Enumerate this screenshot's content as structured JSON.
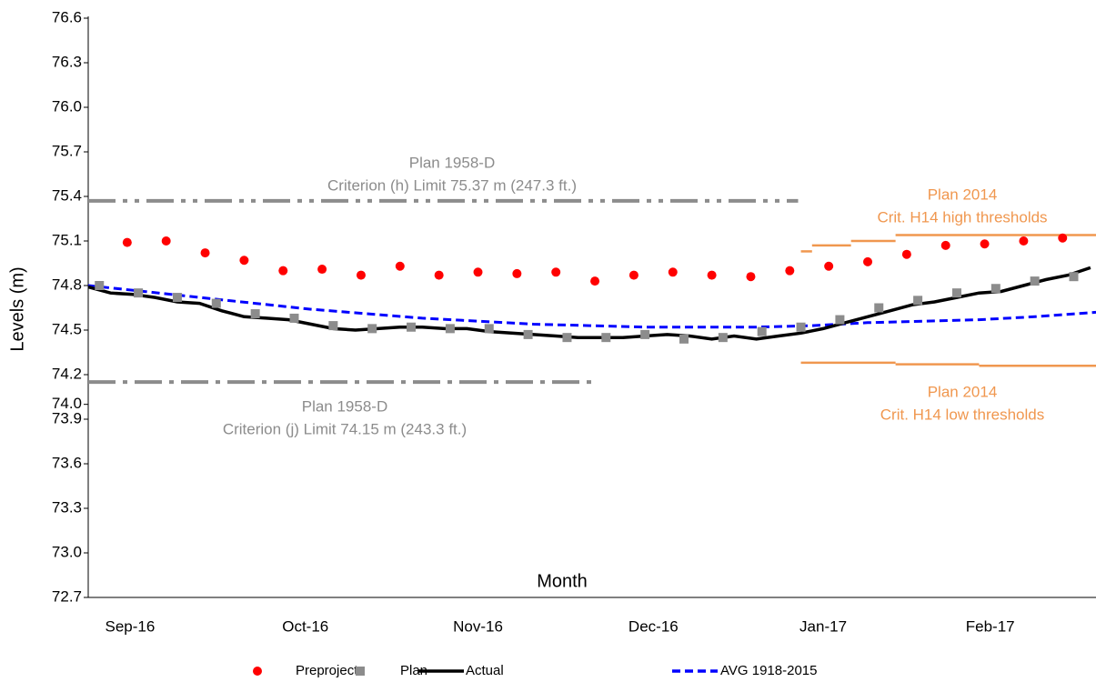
{
  "chart_data": {
    "type": "line",
    "y_label": "Levels (m)",
    "x_label": "Month",
    "xlim": [
      0,
      181
    ],
    "xticks": [
      {
        "value": 7.5,
        "label": "Sep-16"
      },
      {
        "value": 39,
        "label": "Oct-16"
      },
      {
        "value": 70,
        "label": "Nov-16"
      },
      {
        "value": 101.5,
        "label": "Dec-16"
      },
      {
        "value": 132,
        "label": "Jan-17"
      },
      {
        "value": 162,
        "label": "Feb-17"
      }
    ],
    "ylim": [
      72.7,
      76.6
    ],
    "yticks": [
      72.7,
      {
        "value": 73.0,
        "label": "73.0"
      },
      73.3,
      73.6,
      73.9,
      {
        "value": 74.0,
        "label": "74.0"
      },
      74.2,
      74.5,
      74.8,
      75.1,
      75.4,
      75.7,
      {
        "value": 76.0,
        "label": "76.0"
      },
      76.3,
      76.6
    ],
    "grid": false,
    "series": [
      {
        "name": "Preproject",
        "color": "#ff0000",
        "marker": "circle",
        "x": [
          7,
          14,
          21,
          28,
          35,
          42,
          49,
          56,
          63,
          70,
          77,
          84,
          91,
          98,
          105,
          112,
          119,
          126,
          133,
          140,
          147,
          154,
          161,
          168,
          175
        ],
        "values": [
          75.09,
          75.1,
          75.02,
          74.97,
          74.9,
          74.91,
          74.87,
          74.93,
          74.87,
          74.89,
          74.88,
          74.89,
          74.83,
          74.87,
          74.89,
          74.87,
          74.86,
          74.9,
          74.93,
          74.96,
          75.01,
          75.07,
          75.08,
          75.1,
          75.12
        ]
      },
      {
        "name": "Plan",
        "color": "#8c8c8c",
        "marker": "square",
        "x": [
          2,
          9,
          16,
          23,
          30,
          37,
          44,
          51,
          58,
          65,
          72,
          79,
          86,
          93,
          100,
          107,
          114,
          121,
          128,
          135,
          142,
          149,
          156,
          163,
          170,
          177
        ],
        "values": [
          74.8,
          74.75,
          74.72,
          74.68,
          74.61,
          74.58,
          74.53,
          74.51,
          74.52,
          74.51,
          74.51,
          74.47,
          74.45,
          74.45,
          74.47,
          74.44,
          74.45,
          74.49,
          74.52,
          74.57,
          74.65,
          74.7,
          74.75,
          74.78,
          74.83,
          74.86
        ]
      },
      {
        "name": "Actual",
        "color": "#000000",
        "line": "solid",
        "x": [
          0,
          4,
          8,
          12,
          16,
          20,
          24,
          28,
          32,
          36,
          40,
          44,
          48,
          52,
          56,
          60,
          64,
          68,
          72,
          76,
          80,
          84,
          88,
          92,
          96,
          100,
          104,
          108,
          112,
          116,
          120,
          124,
          128,
          132,
          136,
          140,
          144,
          148,
          152,
          156,
          160,
          164,
          168,
          172,
          176,
          180
        ],
        "values": [
          74.79,
          74.75,
          74.74,
          74.72,
          74.69,
          74.68,
          74.63,
          74.59,
          74.58,
          74.57,
          74.54,
          74.51,
          74.5,
          74.51,
          74.52,
          74.52,
          74.51,
          74.51,
          74.49,
          74.48,
          74.47,
          74.46,
          74.45,
          74.45,
          74.45,
          74.46,
          74.47,
          74.46,
          74.44,
          74.46,
          74.44,
          74.46,
          74.48,
          74.51,
          74.55,
          74.59,
          74.63,
          74.67,
          74.69,
          74.72,
          74.75,
          74.76,
          74.8,
          74.84,
          74.87,
          74.92
        ]
      },
      {
        "name": "AVG 1918-2015",
        "color": "#0000ff",
        "line": "dashed",
        "x": [
          0,
          10,
          20,
          30,
          40,
          50,
          60,
          70,
          80,
          90,
          100,
          110,
          120,
          130,
          140,
          150,
          160,
          170,
          181
        ],
        "values": [
          74.8,
          74.76,
          74.72,
          74.68,
          74.64,
          74.61,
          74.58,
          74.56,
          74.54,
          74.53,
          74.52,
          74.52,
          74.52,
          74.53,
          74.55,
          74.56,
          74.57,
          74.59,
          74.62
        ]
      }
    ],
    "reference_lines": [
      {
        "value": 75.37,
        "x": [
          0,
          127.5
        ],
        "color": "#8c8c8c",
        "style": "dash-dot-dot"
      },
      {
        "value": 74.15,
        "x": [
          0,
          90.7
        ],
        "color": "#8c8c8c",
        "style": "dash-dot"
      },
      {
        "value": 75.03,
        "x": [
          128,
          130
        ],
        "color": "#f0974f",
        "style": "solid"
      },
      {
        "value": 75.07,
        "x": [
          130,
          137
        ],
        "color": "#f0974f",
        "style": "solid"
      },
      {
        "value": 75.1,
        "x": [
          137,
          145
        ],
        "color": "#f0974f",
        "style": "solid"
      },
      {
        "value": 75.14,
        "x": [
          145,
          181
        ],
        "color": "#f0974f",
        "style": "solid"
      },
      {
        "value": 74.28,
        "x": [
          128,
          145
        ],
        "color": "#f0974f",
        "style": "solid"
      },
      {
        "value": 74.27,
        "x": [
          145,
          160
        ],
        "color": "#f0974f",
        "style": "solid"
      },
      {
        "value": 74.26,
        "x": [
          160,
          181
        ],
        "color": "#f0974f",
        "style": "solid"
      }
    ],
    "annotations": [
      "Plan 1958-D",
      "Criterion (h) Limit 75.37 m (247.3 ft.)",
      "Plan 1958-D",
      "Criterion (j) Limit 74.15 m (243.3 ft.)",
      "Plan 2014",
      "Crit. H14 high thresholds",
      "Plan 2014",
      "Crit. H14 low thresholds"
    ]
  }
}
